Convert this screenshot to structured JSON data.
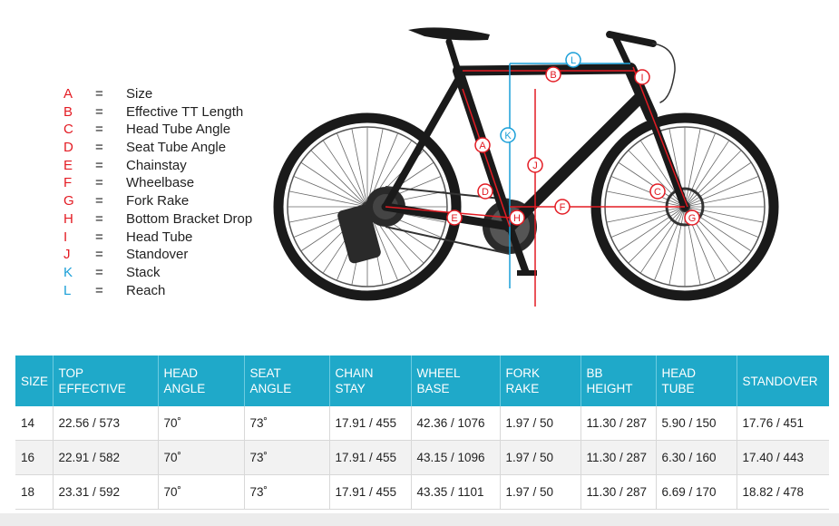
{
  "legend": [
    {
      "letter": "A",
      "name": "Size",
      "color": "#e31b23"
    },
    {
      "letter": "B",
      "name": "Effective TT Length",
      "color": "#e31b23"
    },
    {
      "letter": "C",
      "name": "Head Tube Angle",
      "color": "#e31b23"
    },
    {
      "letter": "D",
      "name": "Seat Tube Angle",
      "color": "#e31b23"
    },
    {
      "letter": "E",
      "name": "Chainstay",
      "color": "#e31b23"
    },
    {
      "letter": "F",
      "name": "Wheelbase",
      "color": "#e31b23"
    },
    {
      "letter": "G",
      "name": "Fork Rake",
      "color": "#e31b23"
    },
    {
      "letter": "H",
      "name": "Bottom Bracket Drop",
      "color": "#e31b23"
    },
    {
      "letter": "I",
      "name": "Head Tube",
      "color": "#e31b23"
    },
    {
      "letter": "J",
      "name": "Standover",
      "color": "#e31b23"
    },
    {
      "letter": "K",
      "name": "Stack",
      "color": "#1a9fd8"
    },
    {
      "letter": "L",
      "name": "Reach",
      "color": "#1a9fd8"
    }
  ],
  "legend_separator": "=",
  "table": {
    "headers": [
      [
        "SIZE"
      ],
      [
        "TOP",
        "EFFECTIVE"
      ],
      [
        "HEAD",
        "ANGLE"
      ],
      [
        "SEAT",
        "ANGLE"
      ],
      [
        "CHAIN",
        "STAY"
      ],
      [
        "WHEEL",
        "BASE"
      ],
      [
        "FORK",
        "RAKE"
      ],
      [
        "BB",
        "HEIGHT"
      ],
      [
        "HEAD",
        "TUBE"
      ],
      [
        "STANDOVER"
      ]
    ],
    "rows": [
      [
        "14",
        "22.56 / 573",
        "70˚",
        "73˚",
        "17.91 / 455",
        "42.36 / 1076",
        "1.97 / 50",
        "11.30 / 287",
        "5.90 / 150",
        "17.76 / 451"
      ],
      [
        "16",
        "22.91 / 582",
        "70˚",
        "73˚",
        "17.91 / 455",
        "43.15 / 1096",
        "1.97 / 50",
        "11.30 / 287",
        "6.30 / 160",
        "17.40 / 443"
      ],
      [
        "18",
        "23.31 / 592",
        "70˚",
        "73˚",
        "17.91 / 455",
        "43.35 / 1101",
        "1.97 / 50",
        "11.30 / 287",
        "6.69 / 170",
        "18.82 / 478"
      ]
    ]
  },
  "colors": {
    "accent_red": "#e31b23",
    "accent_blue": "#1a9fd8",
    "header_bg": "#1fa9c9"
  }
}
